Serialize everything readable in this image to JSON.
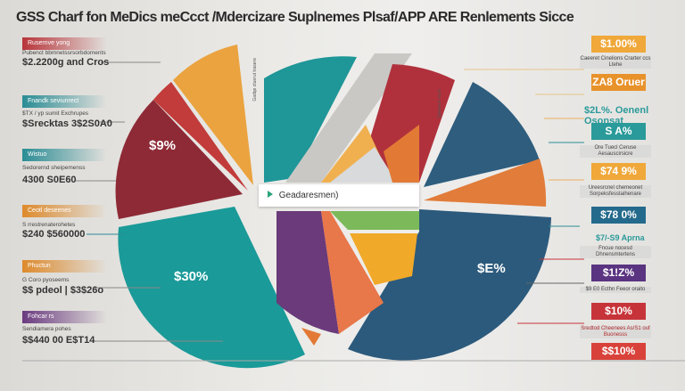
{
  "title": "GSS Charf fon MeDics meCcct  /Mdercizare Suplnemes Plsaf/APP ARE Renlements Sicce",
  "left_items": [
    {
      "tag": "Rusernve yong",
      "small": "Pubenct bbmnetssrsorbdoments",
      "big": "$2.2200g and Cros",
      "color": "#b8343a"
    },
    {
      "tag": "Fnandk seviunrect",
      "small": "$TX / yp sumit Exchrupes",
      "big": "$Srecktas 3$2S0A0",
      "color": "#2a8d95"
    },
    {
      "tag": "Wistuo",
      "small": "Sedorernd sheipemenss",
      "big": "4300 S0E60",
      "color": "#2a8d95"
    },
    {
      "tag": "Ceotl deseenes",
      "small": "S rrestrenaterohetes",
      "big": "$240 $560000",
      "color": "#de8a2c"
    },
    {
      "tag": "Phuctun",
      "small": "G Coro pyoseems",
      "big": "$$ pdeol | $3$26o",
      "color": "#de8a2c"
    },
    {
      "tag": "Fohcar rs",
      "small": "Sendiamera pohes",
      "big": "$$440 00 E$T14",
      "color": "#6b3a80"
    }
  ],
  "right_items": [
    {
      "value": "$1.00%",
      "small": "Caeeret Cinelions Crarter ccs Ltehe",
      "color": "#f0a83a"
    },
    {
      "value": "ZA8 Oruer",
      "small": "",
      "color": "#e8922b"
    },
    {
      "value": "$2L%. Oenenl Osonsat",
      "small": "",
      "color": "#2a9a9a",
      "is_text": true
    },
    {
      "value": "S A%",
      "small": "Ore Tuecl Ceruse Aesauscirsicre",
      "color": "#2a9a9a"
    },
    {
      "value": "$74 9%",
      "small": "Ureesrcnel chemeonet Sorpeksfesstaihenare",
      "color": "#f0a83a"
    },
    {
      "value": "$78 0%",
      "small": "",
      "color": "#246a8c"
    },
    {
      "value": "$7/-S9 Aprna",
      "small": "Fncue nocesd Dhnensmtertens",
      "color": "#2a9a9a",
      "is_text": true
    },
    {
      "value": "$1!Z%",
      "small": "$9 E0 Ecthn Feeor oraito",
      "color": "#5a3480"
    },
    {
      "value": "$10%",
      "small": "Sredtod Cheenees As/S1 ouf Buonesss",
      "color": "#c6343a"
    },
    {
      "value": "$$10%",
      "small": "",
      "color": "#d8423a"
    }
  ],
  "center_label": "Geadaresmen)",
  "vertical_labels": [
    "Gadqe ctuerut trasere",
    "Qaasaue ecue"
  ],
  "chart_data": {
    "type": "pie",
    "title": "GSS Charf fon MeDics meCcct  /Mdercizare Suplnemes Plsaf/APP ARE Renlements Sicce",
    "slice_labels": [
      "$9%",
      "$30%",
      "$E%"
    ],
    "colors": [
      "#8e2a36",
      "#1a9a98",
      "#2c5a7c",
      "#e9a23b",
      "#c9403c",
      "#6a3a7a",
      "#e8774a",
      "#7cb95a"
    ]
  }
}
